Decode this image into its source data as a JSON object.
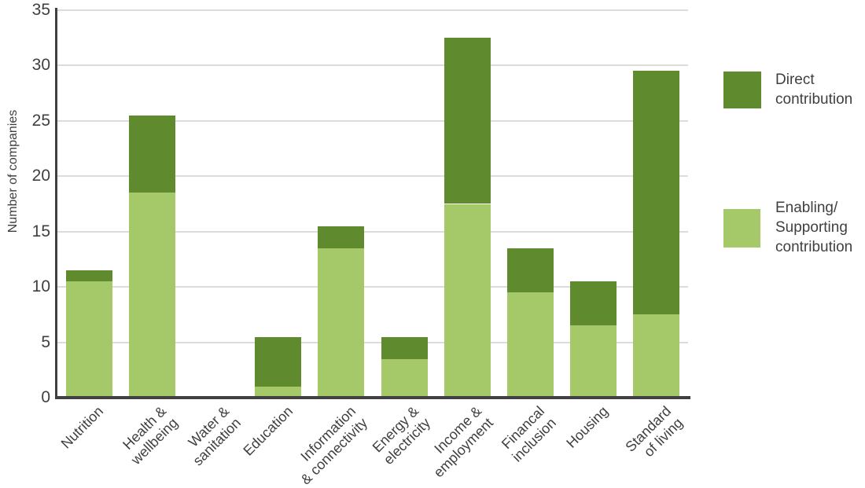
{
  "chart_data": {
    "type": "bar",
    "stacked": true,
    "title": "",
    "xlabel": "",
    "ylabel": "Number of companies",
    "ylim": [
      0,
      35
    ],
    "yticks": [
      0,
      5,
      10,
      15,
      20,
      25,
      30,
      35
    ],
    "grid": "horizontal",
    "legend_position": "right",
    "categories": [
      "Nutrition",
      "Health &\nwellbeing",
      "Water &\nsanitation",
      "Education",
      "Information\n& connectivity",
      "Energy &\nelectricity",
      "Income &\nemployment",
      "Financal\ninclusion",
      "Housing",
      "Standard\nof living"
    ],
    "series": [
      {
        "name": "Direct contribution",
        "color": "#5f8b2e",
        "values": [
          1,
          7,
          0,
          4.5,
          2,
          2,
          15,
          4,
          4,
          22
        ]
      },
      {
        "name": "Enabling/Supporting contribution",
        "color": "#a5c968",
        "values": [
          10.5,
          18.5,
          0,
          1,
          13.5,
          3.5,
          17.5,
          9.5,
          6.5,
          7.5
        ]
      }
    ],
    "totals": [
      11.5,
      25.5,
      0,
      5.5,
      15.5,
      5.5,
      32.5,
      13.5,
      10.5,
      29.5
    ],
    "legend": [
      {
        "label": "Direct\ncontribution",
        "series": "Direct contribution"
      },
      {
        "label": "Enabling/\nSupporting\ncontribution",
        "series": "Enabling/Supporting contribution"
      }
    ]
  },
  "colors": {
    "direct": "#5f8b2e",
    "enabling": "#a5c968",
    "gridline": "#dcdcdc",
    "axis": "#404040",
    "text": "#3f3f3f",
    "background": "#ffffff"
  }
}
